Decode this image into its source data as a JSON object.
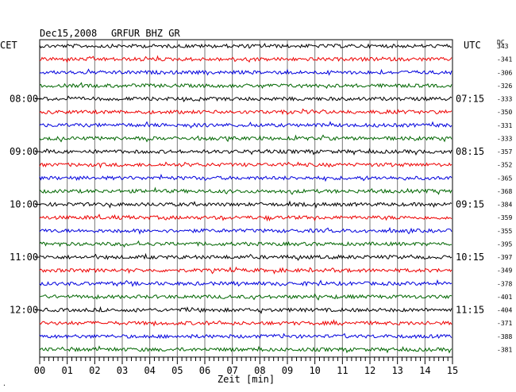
{
  "header": {
    "date": "Dec15,2008",
    "station": "GRFUR BHZ GR",
    "left_tz": "CET",
    "right_tz": "UTC",
    "dc_label": "DC"
  },
  "chart_data": {
    "type": "line",
    "title": "Dec15,2008   GRFUR BHZ GR",
    "xlabel": "Zeit [min]",
    "x_range": [
      0,
      15
    ],
    "x_ticks": [
      "00",
      "01",
      "02",
      "03",
      "04",
      "05",
      "06",
      "07",
      "08",
      "09",
      "10",
      "11",
      "12",
      "13",
      "14",
      "15"
    ],
    "trace_count": 24,
    "trace_colors": [
      "#000000",
      "#ee0000",
      "#0000dd",
      "#006600"
    ],
    "left_time_labels": [
      {
        "trace": 4,
        "text": "08:00"
      },
      {
        "trace": 8,
        "text": "09:00"
      },
      {
        "trace": 12,
        "text": "10:00"
      },
      {
        "trace": 16,
        "text": "11:00"
      },
      {
        "trace": 20,
        "text": "12:00"
      }
    ],
    "right_time_labels": [
      {
        "trace": 4,
        "text": "07:15"
      },
      {
        "trace": 8,
        "text": "08:15"
      },
      {
        "trace": 12,
        "text": "09:15"
      },
      {
        "trace": 16,
        "text": "10:15"
      },
      {
        "trace": 20,
        "text": "11:15"
      }
    ],
    "dc_offsets": [
      "343",
      "-341",
      "-306",
      "-326",
      "-333",
      "-350",
      "-331",
      "-333",
      "-357",
      "-352",
      "-365",
      "-368",
      "-384",
      "-359",
      "-355",
      "-395",
      "-397",
      "-349",
      "-378",
      "-401",
      "-404",
      "-371",
      "-388",
      "-381"
    ],
    "grid": true
  }
}
